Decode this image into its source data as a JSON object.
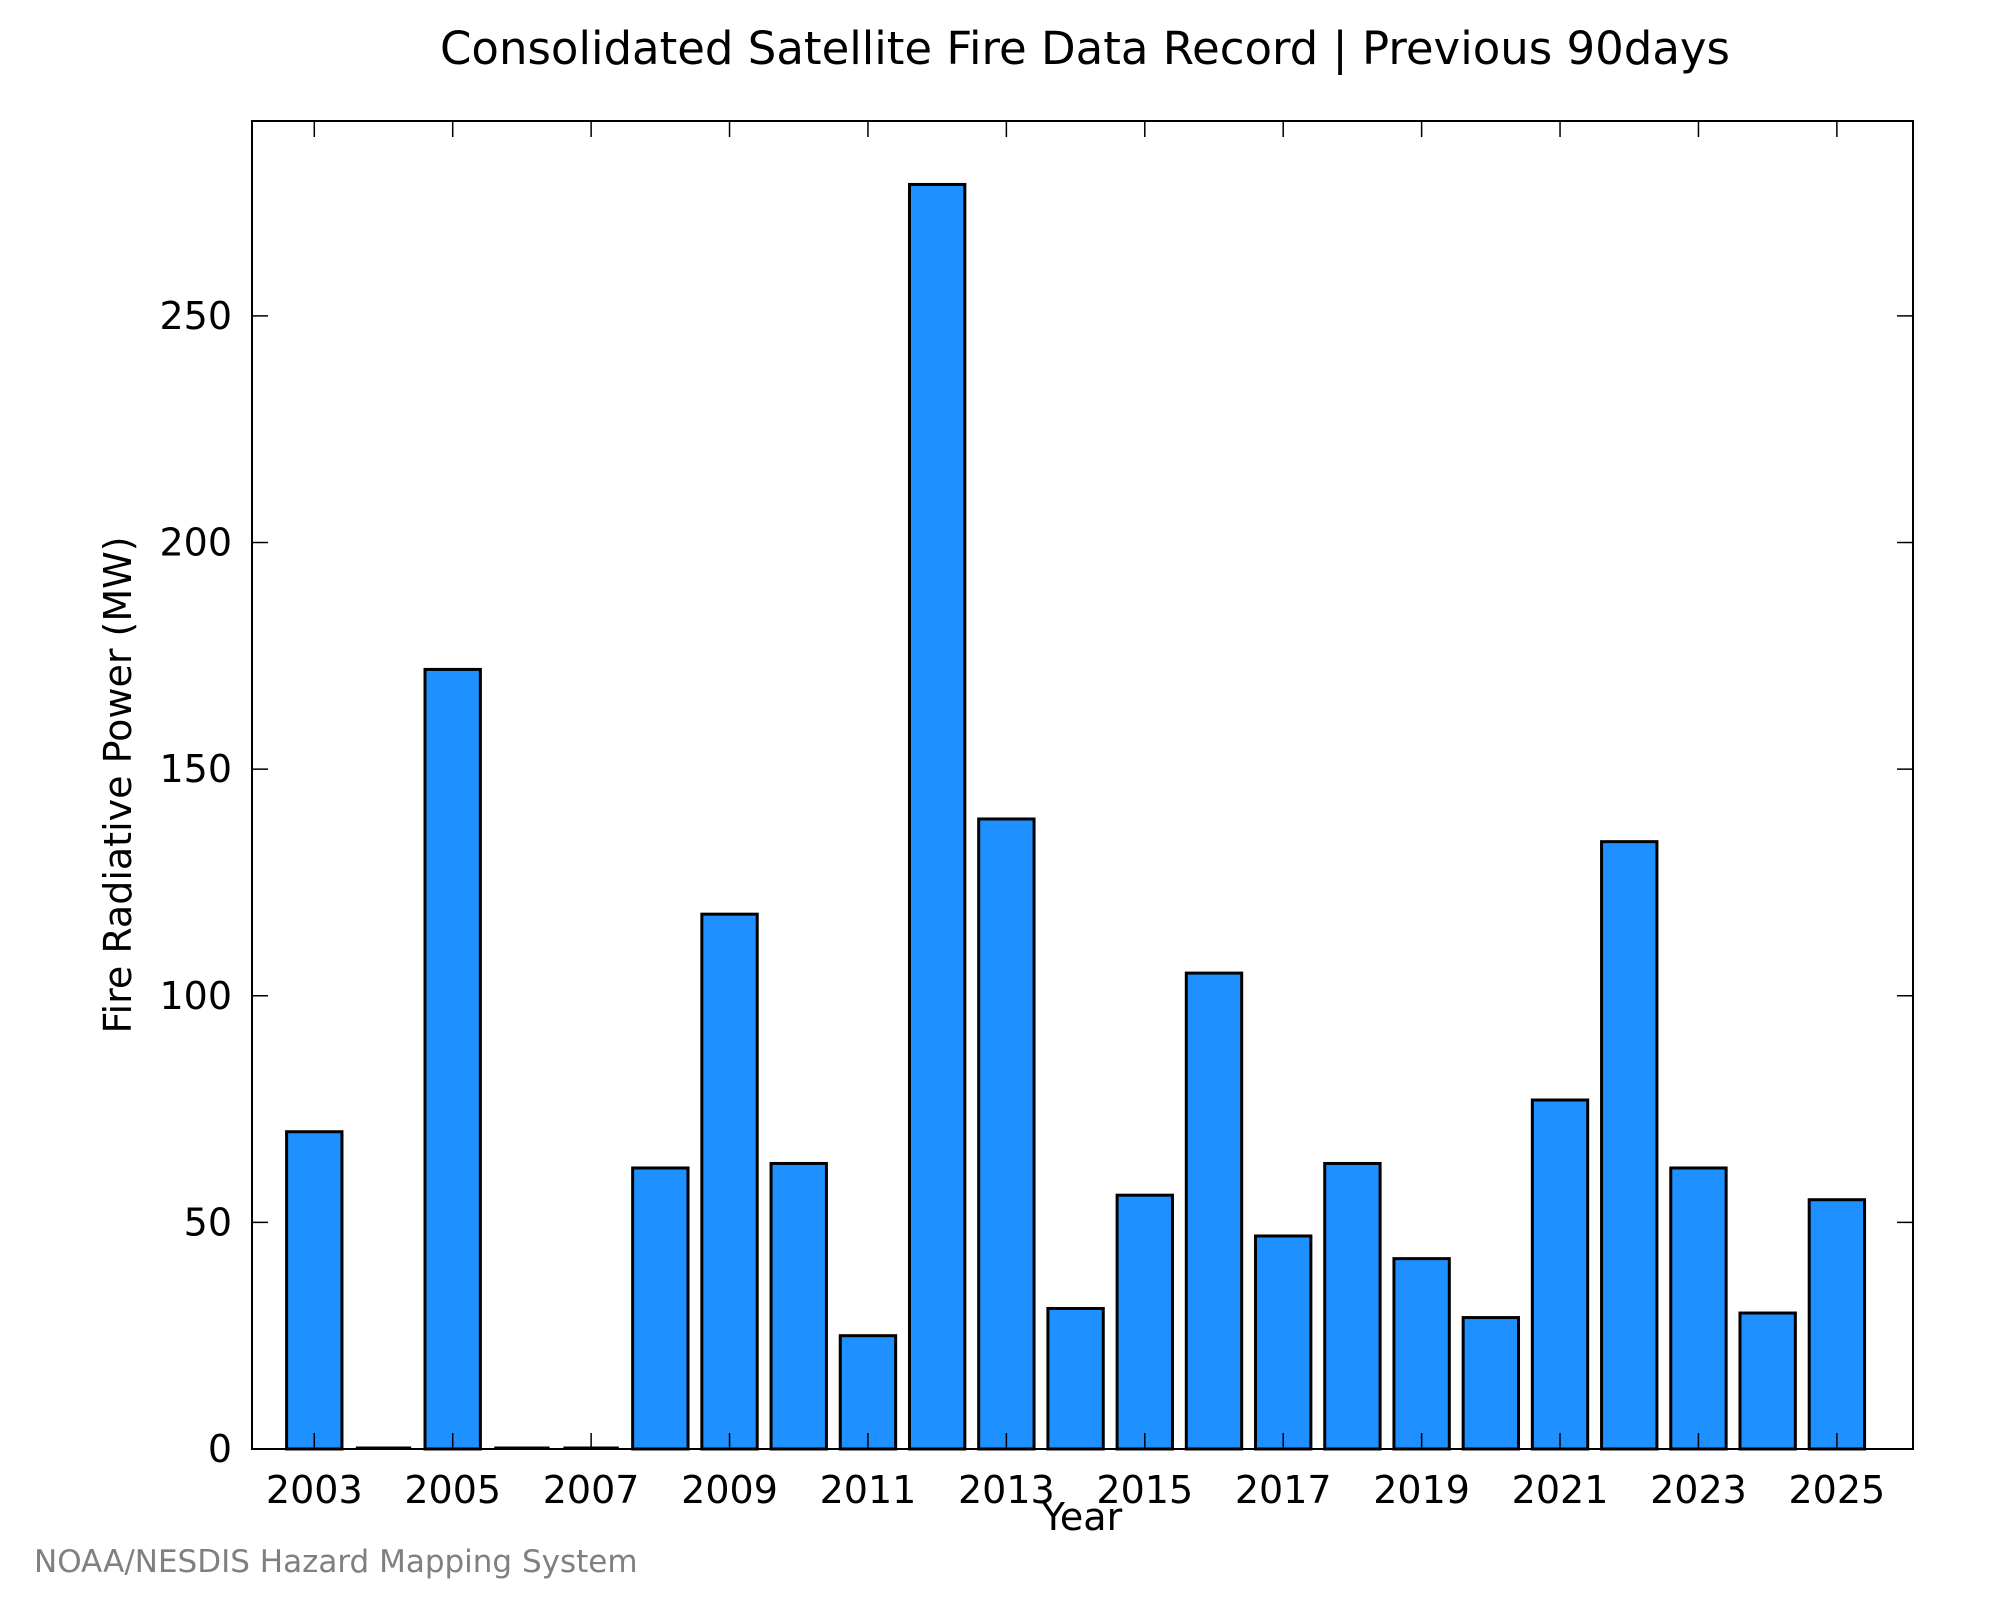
{
  "credit": "NOAA/NESDIS Hazard Mapping System",
  "colors": {
    "bar_fill": "#1E90FF",
    "bar_stroke": "#000000",
    "axis": "#000000",
    "credit_text": "#808080"
  },
  "chart_data": {
    "type": "bar",
    "title": "Consolidated Satellite Fire Data Record | Previous 90days",
    "xlabel": "Year",
    "ylabel": "Fire Radiative Power (MW)",
    "categories": [
      2003,
      2004,
      2005,
      2006,
      2007,
      2008,
      2009,
      2010,
      2011,
      2012,
      2013,
      2014,
      2015,
      2016,
      2017,
      2018,
      2019,
      2020,
      2021,
      2022,
      2023,
      2024,
      2025
    ],
    "values": [
      70,
      0,
      172,
      0,
      0,
      62,
      118,
      63,
      25,
      279,
      139,
      31,
      56,
      105,
      47,
      63,
      42,
      29,
      77,
      134,
      62,
      30,
      55
    ],
    "xlim": [
      2002.1,
      2026.1
    ],
    "ylim": [
      0,
      293
    ],
    "x_ticks": [
      2003,
      2005,
      2007,
      2009,
      2011,
      2013,
      2015,
      2017,
      2019,
      2021,
      2023,
      2025
    ],
    "x_tick_labels": [
      "2003",
      "2005",
      "2007",
      "2009",
      "2011",
      "2013",
      "2015",
      "2017",
      "2019",
      "2021",
      "2023",
      "2025"
    ],
    "y_ticks": [
      0,
      50,
      100,
      150,
      200,
      250
    ],
    "y_tick_labels": [
      "0",
      "50",
      "100",
      "150",
      "200",
      "250"
    ],
    "grid": false,
    "legend": "none"
  }
}
